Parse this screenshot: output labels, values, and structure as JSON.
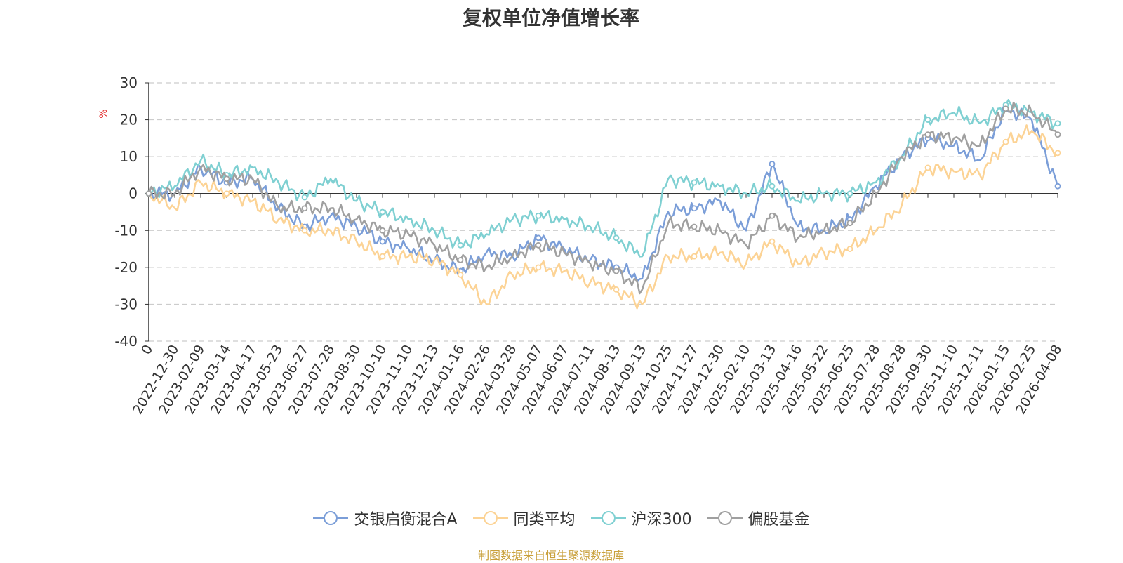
{
  "chart_data": {
    "type": "line",
    "title": "复权单位净值增长率",
    "ylabel": "%",
    "ylim": [
      -40,
      30
    ],
    "yticks": [
      30,
      20,
      10,
      0,
      -10,
      -20,
      -30,
      -40
    ],
    "x_tick_labels": [
      "0",
      "2022-12-30",
      "2023-02-09",
      "2023-03-14",
      "2023-04-17",
      "2023-05-23",
      "2023-06-27",
      "2023-07-28",
      "2023-08-30",
      "2023-10-10",
      "2023-11-10",
      "2023-12-13",
      "2024-01-16",
      "2024-02-26",
      "2024-03-28",
      "2024-05-07",
      "2024-06-07",
      "2024-07-11",
      "2024-08-13",
      "2024-09-13",
      "2024-10-25",
      "2024-11-27",
      "2024-12-30",
      "2025-02-10",
      "2025-03-13",
      "2025-04-16",
      "2025-05-22",
      "2025-06-25",
      "2025-07-28",
      "2025-08-28",
      "2025-09-30",
      "2025-11-10",
      "2025-12-11",
      "2026-01-15",
      "2026-02-25",
      "2026-04-08"
    ],
    "categories": [
      "0",
      "2022-12-30",
      "2023-02-09",
      "2023-03-14",
      "2023-04-17",
      "2023-05-23",
      "2023-06-27",
      "2023-07-28",
      "2023-08-30",
      "2023-10-10",
      "2023-11-10",
      "2023-12-13",
      "2024-01-16",
      "2024-02-26",
      "2024-03-28",
      "2024-05-07",
      "2024-06-07",
      "2024-07-11",
      "2024-08-13",
      "2024-09-13",
      "2024-10-25",
      "2024-11-27",
      "2024-12-30",
      "2025-02-10",
      "2025-03-13",
      "2025-04-16",
      "2025-05-22",
      "2025-06-25",
      "2025-07-28",
      "2025-08-28",
      "2025-09-30",
      "2025-11-10",
      "2025-12-11",
      "2026-01-15",
      "2026-02-25",
      "2026-04-08"
    ],
    "series": [
      {
        "name": "交银启衡混合A",
        "color": "#7b9ed8",
        "values": [
          0,
          0,
          7,
          3,
          4,
          -4,
          -9,
          -6,
          -9,
          -13,
          -15,
          -18,
          -21,
          -16,
          -17,
          -12,
          -15,
          -18,
          -20,
          -23,
          -5,
          -4,
          -2,
          -10,
          8,
          -9,
          -10,
          -7,
          2,
          10,
          15,
          13,
          9,
          23,
          20,
          2
        ]
      },
      {
        "name": "同类平均",
        "color": "#fcd395",
        "values": [
          0,
          -4,
          3,
          0,
          -2,
          -7,
          -10,
          -10,
          -13,
          -17,
          -17,
          -18,
          -22,
          -30,
          -22,
          -20,
          -21,
          -24,
          -26,
          -30,
          -17,
          -17,
          -16,
          -19,
          -13,
          -19,
          -16,
          -15,
          -10,
          -3,
          7,
          6,
          5,
          14,
          17,
          11
        ]
      },
      {
        "name": "沪深300",
        "color": "#7fd0d2",
        "values": [
          0,
          2,
          9,
          5,
          7,
          3,
          -1,
          4,
          -2,
          -5,
          -7,
          -10,
          -14,
          -11,
          -7,
          -6,
          -7,
          -9,
          -12,
          -17,
          4,
          3,
          2,
          0,
          2,
          -2,
          0,
          0,
          3,
          10,
          20,
          22,
          19,
          24,
          22,
          19
        ]
      },
      {
        "name": "偏股基金",
        "color": "#a0a0a0",
        "values": [
          0,
          0,
          7,
          4,
          4,
          -4,
          -4,
          -4,
          -7,
          -10,
          -11,
          -14,
          -18,
          -20,
          -17,
          -14,
          -16,
          -19,
          -21,
          -26,
          -8,
          -9,
          -10,
          -14,
          -6,
          -12,
          -10,
          -8,
          0,
          10,
          16,
          15,
          13,
          23,
          22,
          16
        ]
      }
    ],
    "legend_position": "bottom-center",
    "grid": true
  },
  "source_note": "制图数据来自恒生聚源数据库"
}
